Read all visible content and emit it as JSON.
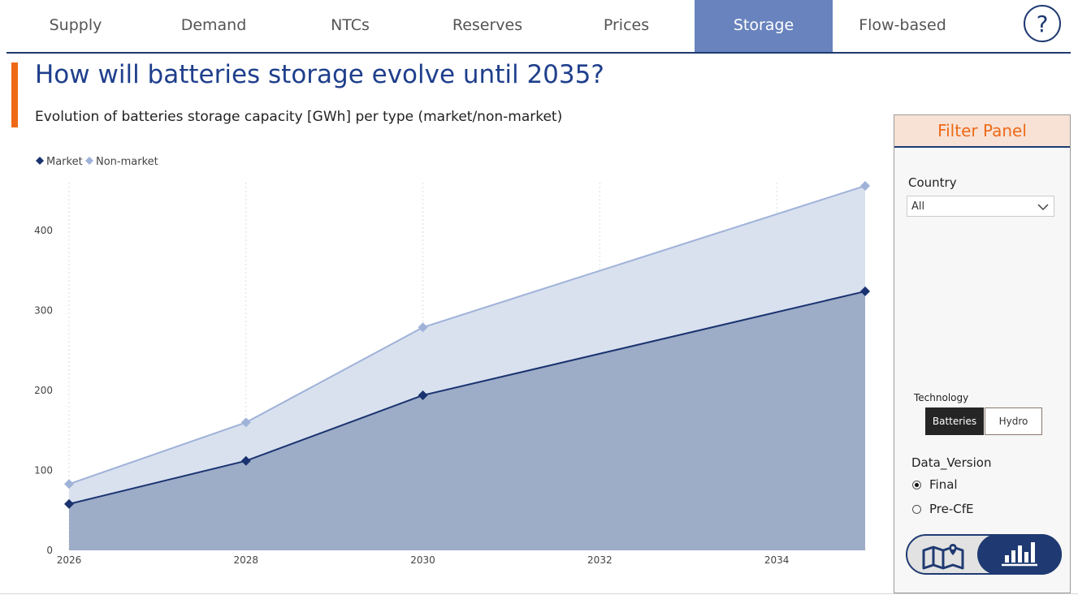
{
  "tabs": [
    {
      "label": "Supply",
      "active": false
    },
    {
      "label": "Demand",
      "active": false
    },
    {
      "label": "NTCs",
      "active": false
    },
    {
      "label": "Reserves",
      "active": false
    },
    {
      "label": "Prices",
      "active": false
    },
    {
      "label": "Storage",
      "active": true
    },
    {
      "label": "Flow-based",
      "active": false
    }
  ],
  "help_icon": "question-mark-icon",
  "header": {
    "title": "How will batteries storage evolve until 2035?",
    "subtitle": "Evolution of batteries storage capacity [GWh] per type (market/non-market)"
  },
  "colors": {
    "accent": "#ee6a17",
    "brand": "#1f3a72",
    "active_tab": "#6883bd",
    "market": "#1a3370",
    "non_market": "#9fb2d8"
  },
  "chart_data": {
    "type": "area",
    "stacked": true,
    "x": [
      2026,
      2028,
      2030,
      2035
    ],
    "series": [
      {
        "name": "Market",
        "values": [
          58,
          112,
          194,
          324
        ]
      },
      {
        "name": "Non-market",
        "values": [
          25,
          48,
          85,
          132
        ]
      }
    ],
    "x_ticks": [
      "2026",
      "2028",
      "2030",
      "2032",
      "2034"
    ],
    "y_ticks": [
      "0",
      "100",
      "200",
      "300",
      "400"
    ],
    "xlim": [
      2026,
      2035
    ],
    "ylim": [
      0,
      460
    ],
    "legend_position": "top-left",
    "grid": "vertical dotted",
    "xlabel": "",
    "ylabel": ""
  },
  "filter_panel": {
    "title": "Filter Panel",
    "country_label": "Country",
    "country_value": "All",
    "technology_label": "Technology",
    "technology_options": [
      "Batteries",
      "Hydro"
    ],
    "technology_selected": "Batteries",
    "data_version_label": "Data_Version",
    "data_version_options": [
      "Final",
      "Pre-CfE"
    ],
    "data_version_selected": "Final",
    "view_toggle": {
      "left_icon": "map-icon",
      "right_icon": "bar-chart-icon",
      "selected": "bar-chart-icon"
    }
  }
}
